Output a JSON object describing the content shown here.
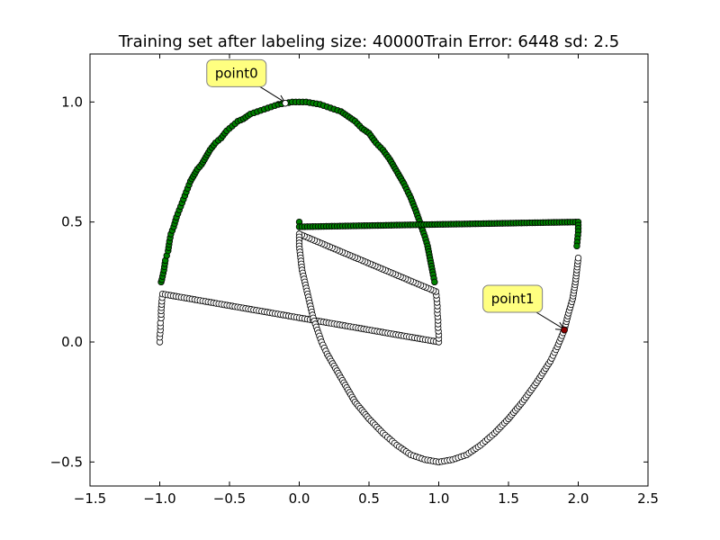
{
  "chart_data": {
    "type": "scatter",
    "title": "Training set after labeling size: 40000Train Error: 6448 sd: 2.5",
    "xlabel": "",
    "ylabel": "",
    "xlim": [
      -1.5,
      2.5
    ],
    "ylim": [
      -0.6,
      1.2
    ],
    "xticks": [
      -1.5,
      -1.0,
      -0.5,
      0.0,
      0.5,
      1.0,
      1.5,
      2.0,
      2.5
    ],
    "xtick_labels": [
      "−1.5",
      "−1.0",
      "−0.5",
      "0.0",
      "0.5",
      "1.0",
      "1.5",
      "2.0",
      "2.5"
    ],
    "yticks": [
      -0.5,
      0.0,
      0.5,
      1.0
    ],
    "ytick_labels": [
      "−0.5",
      "0.0",
      "0.5",
      "1.0"
    ],
    "grid": false,
    "series": [
      {
        "marker_color": "#008000",
        "description": "upper moon, labeled green",
        "shape": "arc_upper",
        "center": [
          0.0,
          0.0
        ],
        "radius": 1.0,
        "points": [
          [
            -0.99,
            0.25
          ],
          [
            -0.985,
            0.26
          ],
          [
            -0.97,
            0.3
          ],
          [
            -0.96,
            0.34
          ],
          [
            -0.95,
            0.36
          ],
          [
            -0.94,
            0.38
          ],
          [
            -0.93,
            0.42
          ],
          [
            -0.92,
            0.45
          ],
          [
            -0.9,
            0.48
          ],
          [
            -0.88,
            0.52
          ],
          [
            -0.86,
            0.55
          ],
          [
            -0.84,
            0.58
          ],
          [
            -0.82,
            0.61
          ],
          [
            -0.8,
            0.64
          ],
          [
            -0.78,
            0.67
          ],
          [
            -0.76,
            0.69
          ],
          [
            -0.73,
            0.72
          ],
          [
            -0.7,
            0.74
          ],
          [
            -0.67,
            0.77
          ],
          [
            -0.64,
            0.8
          ],
          [
            -0.6,
            0.83
          ],
          [
            -0.56,
            0.85
          ],
          [
            -0.52,
            0.88
          ],
          [
            -0.48,
            0.9
          ],
          [
            -0.44,
            0.92
          ],
          [
            -0.4,
            0.93
          ],
          [
            -0.35,
            0.95
          ],
          [
            -0.3,
            0.96
          ],
          [
            -0.25,
            0.97
          ],
          [
            -0.2,
            0.98
          ],
          [
            -0.15,
            0.99
          ],
          [
            -0.1,
            0.995
          ],
          [
            -0.05,
            1.0
          ],
          [
            0.0,
            1.0
          ],
          [
            0.05,
            1.0
          ],
          [
            0.1,
            0.995
          ],
          [
            0.15,
            0.99
          ],
          [
            0.2,
            0.98
          ],
          [
            0.25,
            0.97
          ],
          [
            0.3,
            0.96
          ],
          [
            0.35,
            0.94
          ],
          [
            0.4,
            0.92
          ],
          [
            0.45,
            0.89
          ],
          [
            0.5,
            0.87
          ],
          [
            0.55,
            0.83
          ],
          [
            0.6,
            0.8
          ],
          [
            0.65,
            0.76
          ],
          [
            0.7,
            0.71
          ],
          [
            0.75,
            0.66
          ],
          [
            0.8,
            0.6
          ],
          [
            0.84,
            0.54
          ],
          [
            0.87,
            0.49
          ],
          [
            0.9,
            0.44
          ],
          [
            0.92,
            0.4
          ],
          [
            0.94,
            0.34
          ],
          [
            0.96,
            0.28
          ],
          [
            0.97,
            0.25
          ]
        ]
      },
      {
        "marker_color": "#ffffff",
        "description": "unlabeled white points",
        "shape": "arc_lower_and_tails",
        "points": [
          [
            -1.0,
            0.0
          ],
          [
            -1.0,
            0.02
          ],
          [
            -0.995,
            0.05
          ],
          [
            -0.995,
            0.08
          ],
          [
            -0.99,
            0.1
          ],
          [
            -0.99,
            0.13
          ],
          [
            -0.985,
            0.17
          ],
          [
            -0.98,
            0.2
          ],
          [
            1.0,
            0.0
          ],
          [
            1.0,
            0.03
          ],
          [
            0.995,
            0.06
          ],
          [
            0.995,
            0.09
          ],
          [
            0.99,
            0.12
          ],
          [
            0.99,
            0.15
          ],
          [
            0.985,
            0.18
          ],
          [
            0.98,
            0.21
          ],
          [
            0.0,
            0.45
          ],
          [
            0.0,
            0.4
          ],
          [
            0.01,
            0.35
          ],
          [
            0.02,
            0.3
          ],
          [
            0.04,
            0.25
          ],
          [
            0.06,
            0.2
          ],
          [
            0.08,
            0.15
          ],
          [
            0.1,
            0.1
          ],
          [
            0.13,
            0.05
          ],
          [
            0.16,
            0.0
          ],
          [
            0.2,
            -0.05
          ],
          [
            0.25,
            -0.1
          ],
          [
            0.3,
            -0.15
          ],
          [
            0.35,
            -0.2
          ],
          [
            0.4,
            -0.25
          ],
          [
            0.5,
            -0.32
          ],
          [
            0.6,
            -0.38
          ],
          [
            0.7,
            -0.43
          ],
          [
            0.8,
            -0.47
          ],
          [
            0.9,
            -0.49
          ],
          [
            1.0,
            -0.5
          ],
          [
            1.1,
            -0.49
          ],
          [
            1.2,
            -0.47
          ],
          [
            1.3,
            -0.43
          ],
          [
            1.4,
            -0.38
          ],
          [
            1.5,
            -0.32
          ],
          [
            1.6,
            -0.25
          ],
          [
            1.7,
            -0.17
          ],
          [
            1.8,
            -0.08
          ],
          [
            1.85,
            -0.02
          ],
          [
            1.9,
            0.05
          ],
          [
            1.93,
            0.12
          ],
          [
            1.96,
            0.18
          ],
          [
            1.98,
            0.25
          ],
          [
            1.99,
            0.3
          ],
          [
            2.0,
            0.35
          ]
        ]
      },
      {
        "marker_color": "#008000",
        "description": "lower moon green tips",
        "points": [
          [
            0.0,
            0.5
          ],
          [
            0.0,
            0.48
          ],
          [
            2.0,
            0.5
          ],
          [
            2.0,
            0.46
          ],
          [
            1.995,
            0.43
          ],
          [
            1.99,
            0.4
          ]
        ]
      }
    ],
    "annotations": [
      {
        "text": "point0",
        "point": [
          -0.1,
          0.995
        ],
        "label_pos": [
          -0.45,
          1.12
        ]
      },
      {
        "text": "point1",
        "point": [
          1.9,
          0.05
        ],
        "label_pos": [
          1.53,
          0.18
        ],
        "point_color": "#8b0000"
      }
    ],
    "annotation_style": {
      "box_color": "#ffff80",
      "edge_color": "#808080"
    }
  }
}
